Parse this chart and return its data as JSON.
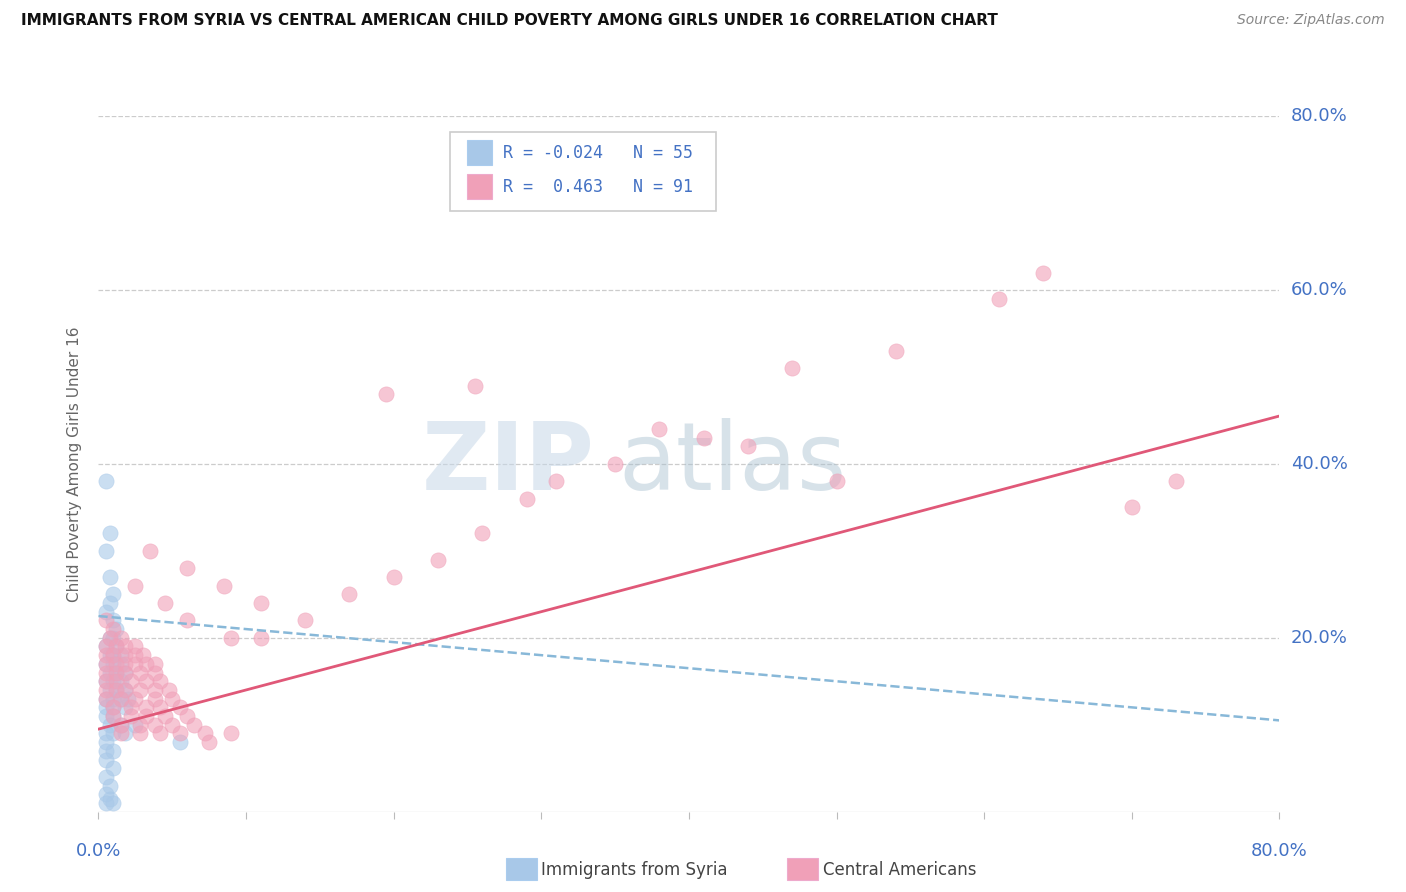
{
  "title": "IMMIGRANTS FROM SYRIA VS CENTRAL AMERICAN CHILD POVERTY AMONG GIRLS UNDER 16 CORRELATION CHART",
  "source": "Source: ZipAtlas.com",
  "ylabel": "Child Poverty Among Girls Under 16",
  "xlim": [
    0.0,
    0.8
  ],
  "ylim": [
    0.0,
    0.8
  ],
  "blue_color": "#a8c8e8",
  "pink_color": "#f0a0b8",
  "blue_line_color": "#88b8d8",
  "pink_line_color": "#e05878",
  "watermark_zip": "ZIP",
  "watermark_atlas": "atlas",
  "blue_line_x": [
    0.0,
    0.8
  ],
  "blue_line_y": [
    0.225,
    0.105
  ],
  "pink_line_x": [
    0.0,
    0.8
  ],
  "pink_line_y": [
    0.095,
    0.455
  ],
  "blue_scatter": [
    [
      0.005,
      0.38
    ],
    [
      0.008,
      0.32
    ],
    [
      0.005,
      0.3
    ],
    [
      0.008,
      0.27
    ],
    [
      0.01,
      0.25
    ],
    [
      0.008,
      0.24
    ],
    [
      0.005,
      0.23
    ],
    [
      0.01,
      0.22
    ],
    [
      0.012,
      0.21
    ],
    [
      0.008,
      0.2
    ],
    [
      0.01,
      0.2
    ],
    [
      0.005,
      0.19
    ],
    [
      0.012,
      0.19
    ],
    [
      0.008,
      0.18
    ],
    [
      0.01,
      0.18
    ],
    [
      0.015,
      0.18
    ],
    [
      0.005,
      0.17
    ],
    [
      0.01,
      0.17
    ],
    [
      0.015,
      0.17
    ],
    [
      0.008,
      0.16
    ],
    [
      0.012,
      0.16
    ],
    [
      0.018,
      0.16
    ],
    [
      0.005,
      0.15
    ],
    [
      0.01,
      0.15
    ],
    [
      0.015,
      0.15
    ],
    [
      0.008,
      0.14
    ],
    [
      0.012,
      0.14
    ],
    [
      0.018,
      0.14
    ],
    [
      0.005,
      0.13
    ],
    [
      0.01,
      0.13
    ],
    [
      0.015,
      0.13
    ],
    [
      0.02,
      0.13
    ],
    [
      0.005,
      0.12
    ],
    [
      0.01,
      0.12
    ],
    [
      0.018,
      0.12
    ],
    [
      0.005,
      0.11
    ],
    [
      0.01,
      0.11
    ],
    [
      0.008,
      0.1
    ],
    [
      0.015,
      0.1
    ],
    [
      0.025,
      0.1
    ],
    [
      0.005,
      0.09
    ],
    [
      0.01,
      0.09
    ],
    [
      0.018,
      0.09
    ],
    [
      0.005,
      0.08
    ],
    [
      0.055,
      0.08
    ],
    [
      0.005,
      0.07
    ],
    [
      0.01,
      0.07
    ],
    [
      0.005,
      0.06
    ],
    [
      0.01,
      0.05
    ],
    [
      0.005,
      0.04
    ],
    [
      0.008,
      0.03
    ],
    [
      0.005,
      0.02
    ],
    [
      0.008,
      0.015
    ],
    [
      0.005,
      0.01
    ],
    [
      0.01,
      0.01
    ]
  ],
  "pink_scatter": [
    [
      0.005,
      0.22
    ],
    [
      0.01,
      0.21
    ],
    [
      0.008,
      0.2
    ],
    [
      0.015,
      0.2
    ],
    [
      0.005,
      0.19
    ],
    [
      0.012,
      0.19
    ],
    [
      0.018,
      0.19
    ],
    [
      0.025,
      0.19
    ],
    [
      0.005,
      0.18
    ],
    [
      0.01,
      0.18
    ],
    [
      0.018,
      0.18
    ],
    [
      0.025,
      0.18
    ],
    [
      0.03,
      0.18
    ],
    [
      0.005,
      0.17
    ],
    [
      0.012,
      0.17
    ],
    [
      0.018,
      0.17
    ],
    [
      0.025,
      0.17
    ],
    [
      0.032,
      0.17
    ],
    [
      0.038,
      0.17
    ],
    [
      0.005,
      0.16
    ],
    [
      0.012,
      0.16
    ],
    [
      0.018,
      0.16
    ],
    [
      0.028,
      0.16
    ],
    [
      0.038,
      0.16
    ],
    [
      0.005,
      0.15
    ],
    [
      0.012,
      0.15
    ],
    [
      0.022,
      0.15
    ],
    [
      0.032,
      0.15
    ],
    [
      0.042,
      0.15
    ],
    [
      0.005,
      0.14
    ],
    [
      0.012,
      0.14
    ],
    [
      0.018,
      0.14
    ],
    [
      0.028,
      0.14
    ],
    [
      0.038,
      0.14
    ],
    [
      0.048,
      0.14
    ],
    [
      0.005,
      0.13
    ],
    [
      0.015,
      0.13
    ],
    [
      0.025,
      0.13
    ],
    [
      0.038,
      0.13
    ],
    [
      0.05,
      0.13
    ],
    [
      0.01,
      0.12
    ],
    [
      0.022,
      0.12
    ],
    [
      0.032,
      0.12
    ],
    [
      0.042,
      0.12
    ],
    [
      0.055,
      0.12
    ],
    [
      0.01,
      0.11
    ],
    [
      0.022,
      0.11
    ],
    [
      0.032,
      0.11
    ],
    [
      0.045,
      0.11
    ],
    [
      0.06,
      0.11
    ],
    [
      0.015,
      0.1
    ],
    [
      0.028,
      0.1
    ],
    [
      0.038,
      0.1
    ],
    [
      0.05,
      0.1
    ],
    [
      0.065,
      0.1
    ],
    [
      0.015,
      0.09
    ],
    [
      0.028,
      0.09
    ],
    [
      0.042,
      0.09
    ],
    [
      0.055,
      0.09
    ],
    [
      0.072,
      0.09
    ],
    [
      0.025,
      0.26
    ],
    [
      0.045,
      0.24
    ],
    [
      0.06,
      0.22
    ],
    [
      0.09,
      0.2
    ],
    [
      0.11,
      0.2
    ],
    [
      0.035,
      0.3
    ],
    [
      0.06,
      0.28
    ],
    [
      0.085,
      0.26
    ],
    [
      0.11,
      0.24
    ],
    [
      0.14,
      0.22
    ],
    [
      0.17,
      0.25
    ],
    [
      0.2,
      0.27
    ],
    [
      0.23,
      0.29
    ],
    [
      0.26,
      0.32
    ],
    [
      0.29,
      0.36
    ],
    [
      0.195,
      0.48
    ],
    [
      0.255,
      0.49
    ],
    [
      0.31,
      0.38
    ],
    [
      0.35,
      0.4
    ],
    [
      0.38,
      0.44
    ],
    [
      0.41,
      0.43
    ],
    [
      0.44,
      0.42
    ],
    [
      0.47,
      0.51
    ],
    [
      0.5,
      0.38
    ],
    [
      0.54,
      0.53
    ],
    [
      0.61,
      0.59
    ],
    [
      0.64,
      0.62
    ],
    [
      0.7,
      0.35
    ],
    [
      0.73,
      0.38
    ],
    [
      0.075,
      0.08
    ],
    [
      0.09,
      0.09
    ]
  ]
}
